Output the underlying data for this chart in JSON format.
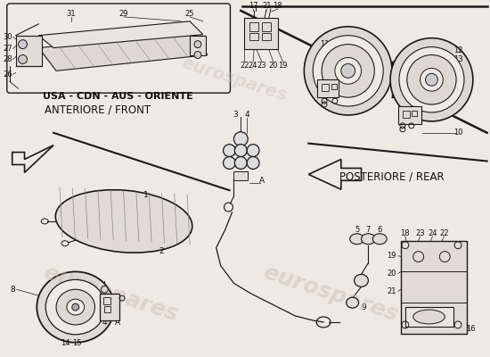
{
  "bg_color": "#ede9e3",
  "line_color": "#1a1a1a",
  "text_color": "#111111",
  "watermark_color": "#c5bdb0",
  "label_usa_cdn": "USA - CDN - AUS - ORIENTE",
  "label_front": "ANTERIORE / FRONT",
  "label_rear": "POSTERIORE / REAR"
}
